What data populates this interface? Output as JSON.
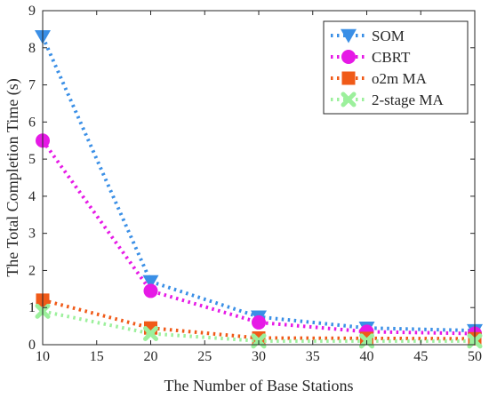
{
  "chart_data": {
    "type": "line",
    "title": "",
    "xlabel": "The Number of Base Stations",
    "ylabel": "The Total Completion Time (s)",
    "xlim": [
      10,
      50
    ],
    "ylim": [
      0,
      9
    ],
    "xticks": [
      10,
      15,
      20,
      25,
      30,
      35,
      40,
      45,
      50
    ],
    "yticks": [
      0,
      1,
      2,
      3,
      4,
      5,
      6,
      7,
      8,
      9
    ],
    "grid": false,
    "legend_position": "top-right",
    "x": [
      10,
      20,
      30,
      40,
      50
    ],
    "series": [
      {
        "name": "SOM",
        "values": [
          8.3,
          1.7,
          0.75,
          0.45,
          0.38
        ],
        "color": "#3a8fe6",
        "marker": "triangle-down"
      },
      {
        "name": "CBRT",
        "values": [
          5.5,
          1.45,
          0.6,
          0.35,
          0.3
        ],
        "color": "#e619e6",
        "marker": "circle"
      },
      {
        "name": "o2m MA",
        "values": [
          1.2,
          0.45,
          0.18,
          0.17,
          0.16
        ],
        "color": "#f05a18",
        "marker": "square"
      },
      {
        "name": "2-stage MA",
        "values": [
          0.9,
          0.3,
          0.1,
          0.1,
          0.1
        ],
        "color": "#9cf09c",
        "marker": "x-cross"
      }
    ]
  }
}
